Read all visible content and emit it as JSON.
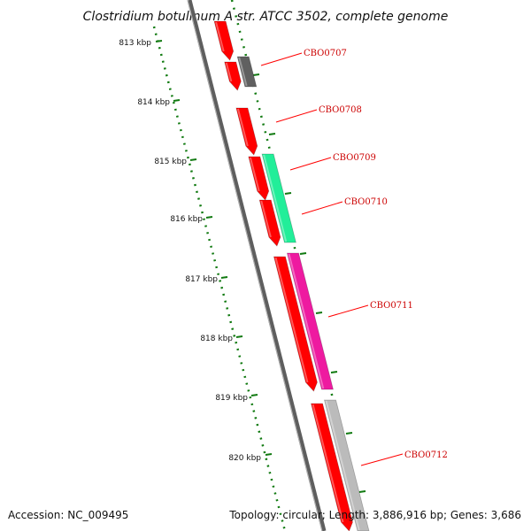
{
  "title": "Clostridium botulinum A str. ATCC 3502, complete genome",
  "accession": "Accession: NC_009495",
  "summary": "Topology: circular; Length: 3,886,916 bp; Genes: 3,686",
  "colors": {
    "backbone": "#7a7a7a",
    "ticks": "#117a11",
    "label_line": "#ff0000",
    "label_text": "#cc0000"
  },
  "ticks": [
    "813 kbp",
    "814 kbp",
    "815 kbp",
    "816 kbp",
    "817 kbp",
    "818 kbp",
    "819 kbp",
    "820 kbp"
  ],
  "genes": [
    {
      "label": "",
      "strand": "forward",
      "color": "#ff0000"
    },
    {
      "label": "",
      "strand": "forward",
      "color": "#ff0000"
    },
    {
      "label": "CBO0707",
      "strand": "reverse",
      "color": "#606060"
    },
    {
      "label": "CBO0708",
      "strand": "forward",
      "color": "#ff0000"
    },
    {
      "label": "CBO0709",
      "strand": "forward",
      "color": "#ff0000"
    },
    {
      "label": "CBO0710",
      "strand": "reverse",
      "color": "#22ee99"
    },
    {
      "label": "",
      "strand": "forward",
      "color": "#ff0000"
    },
    {
      "label": "",
      "strand": "forward",
      "color": "#ff0000"
    },
    {
      "label": "CBO0711",
      "strand": "reverse",
      "color": "#ee1aa0"
    },
    {
      "label": "",
      "strand": "forward",
      "color": "#ff0000"
    },
    {
      "label": "CBO0712",
      "strand": "reverse",
      "color": "#bbbbbb"
    }
  ]
}
